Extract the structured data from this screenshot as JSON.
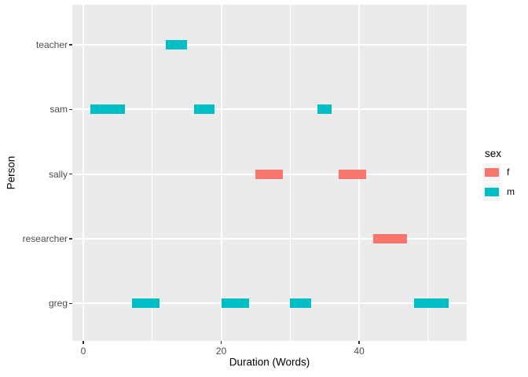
{
  "figure": {
    "background": "#FFFFFF",
    "panel_background": "#EBEBEB",
    "grid_color": "#FFFFFF",
    "tick_mark_color": "#333333",
    "axis_text_color": "#4D4D4D",
    "axis_title_color": "#000000",
    "legend_key_background": "#F5F5F5"
  },
  "chart_data": {
    "type": "gantt",
    "title": "",
    "xlabel": "Duration (Words)",
    "ylabel": "Person",
    "x_major_ticks": [
      0,
      20,
      40
    ],
    "x_major_tick_labels": [
      "0",
      "20",
      "40"
    ],
    "x_minor_ticks": [
      10,
      30,
      50
    ],
    "xlim": [
      -1.6,
      55.6
    ],
    "grid": "white major and minor gridlines on gray panel",
    "y_categories_bottom_to_top": [
      "greg",
      "researcher",
      "sally",
      "sam",
      "teacher"
    ],
    "legend": {
      "title": "sex",
      "position": "right",
      "entries": [
        {
          "label": "f",
          "color": "#F8766D"
        },
        {
          "label": "m",
          "color": "#00BFC4"
        }
      ]
    },
    "segments": [
      {
        "person": "sam",
        "start": 1,
        "end": 6,
        "sex": "m"
      },
      {
        "person": "greg",
        "start": 7,
        "end": 11,
        "sex": "m"
      },
      {
        "person": "teacher",
        "start": 12,
        "end": 15,
        "sex": "m"
      },
      {
        "person": "sam",
        "start": 16,
        "end": 19,
        "sex": "m"
      },
      {
        "person": "greg",
        "start": 20,
        "end": 24,
        "sex": "m"
      },
      {
        "person": "sally",
        "start": 25,
        "end": 29,
        "sex": "f"
      },
      {
        "person": "greg",
        "start": 30,
        "end": 33,
        "sex": "m"
      },
      {
        "person": "sam",
        "start": 34,
        "end": 36,
        "sex": "m"
      },
      {
        "person": "sally",
        "start": 37,
        "end": 41,
        "sex": "f"
      },
      {
        "person": "researcher",
        "start": 42,
        "end": 47,
        "sex": "f"
      },
      {
        "person": "greg",
        "start": 48,
        "end": 53,
        "sex": "m"
      }
    ]
  }
}
